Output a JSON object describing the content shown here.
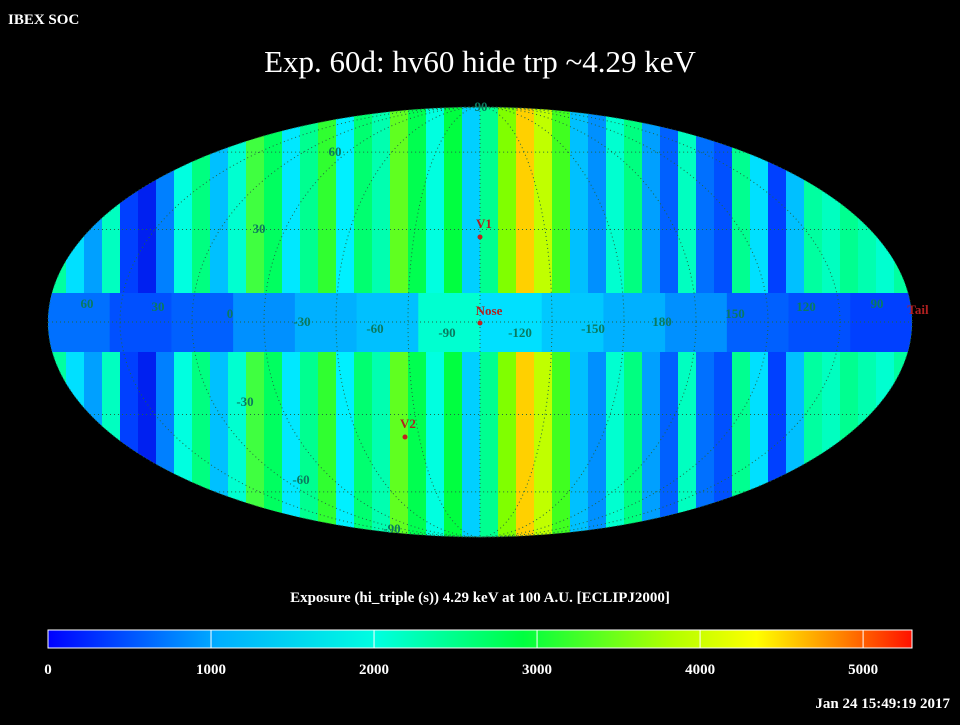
{
  "header": {
    "org": "IBEX SOC",
    "title": "Exp.   60d: hv60 hide trp ~4.29 keV"
  },
  "map": {
    "longitude_labels": [
      "60",
      "30",
      "0",
      "-30",
      "-60",
      "-90",
      "-120",
      "-150",
      "180",
      "150",
      "120",
      "90"
    ],
    "latitude_labels": [
      "90",
      "60",
      "30",
      "-30",
      "-60",
      "-90"
    ],
    "markers": [
      "V1",
      "Nose",
      "V2",
      "Tail"
    ]
  },
  "colorbar": {
    "label": "Exposure (hi_triple (s))  4.29 keV at 100 A.U. [ECLIPJ2000]",
    "lim": [
      0,
      5300
    ],
    "ticks": [
      0,
      1000,
      2000,
      3000,
      4000,
      5000
    ]
  },
  "footer": {
    "timestamp": "Jan 24 15:49:19 2017"
  }
}
